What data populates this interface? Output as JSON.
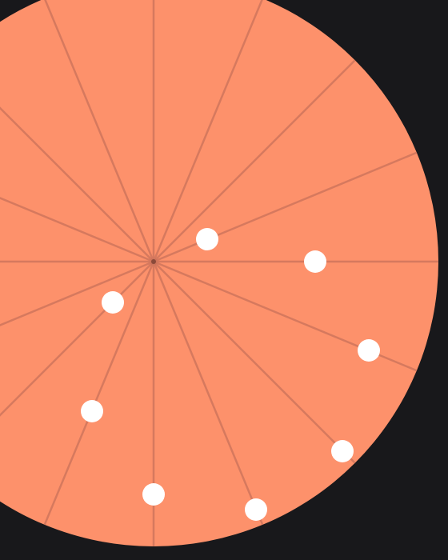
{
  "wheel": {
    "segments": 16,
    "fill_color": "#fd916b",
    "spoke_color": "#c8725a",
    "hub_color": "#8a4a3a"
  },
  "pellets": {
    "color": "#ffffff",
    "count": 8
  },
  "background_color": "#18181b"
}
